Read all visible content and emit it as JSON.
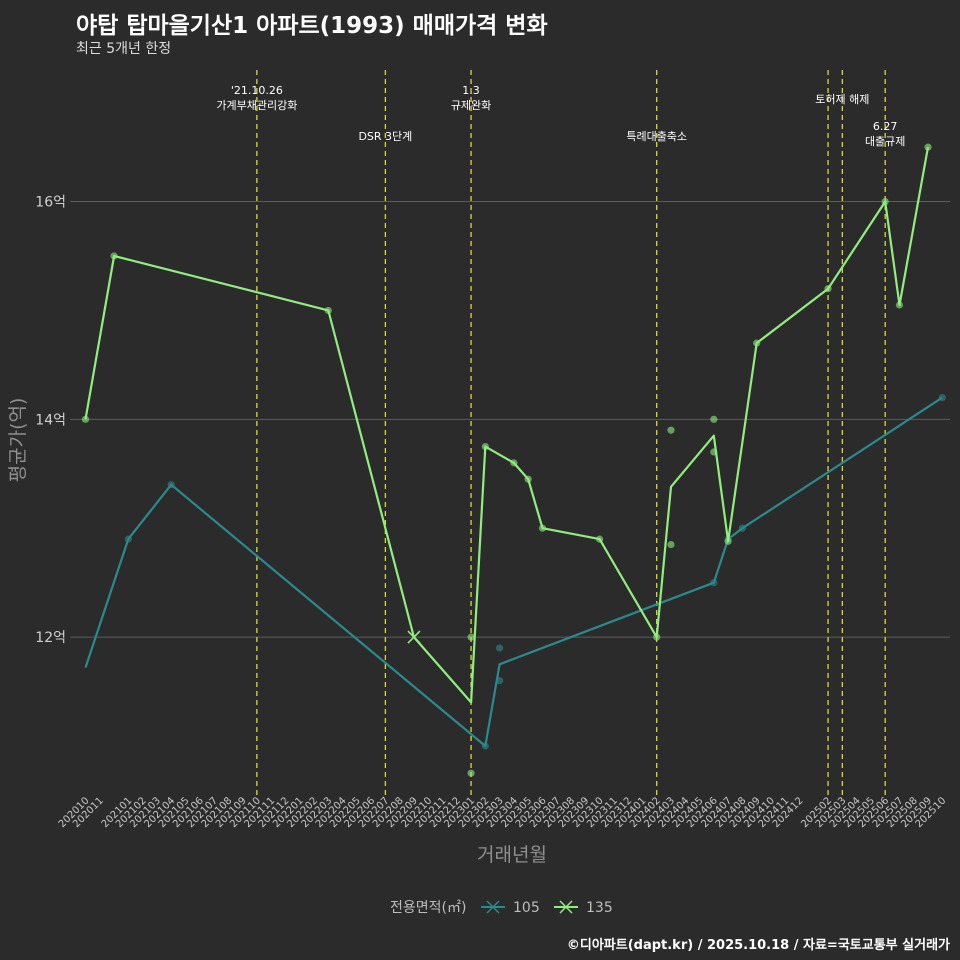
{
  "title": "야탑 탑마을기산1 아파트(1993) 매매가격 변화",
  "subtitle": "최근 5개년 한정",
  "caption": "©디아파트(dapt.kr) / 2025.10.18 / 자료=국토교통부 실거래가",
  "colors": {
    "background": "#2b2b2b",
    "grid": "#5c5c5c",
    "series_105": "#2a8a8c",
    "series_135": "#90ee7e",
    "event_line": "#d9d93a"
  },
  "chart_data": {
    "type": "line",
    "xlabel": "거래년월",
    "ylabel": "평균가(억)",
    "yunit": "억",
    "ylim": [
      10.55,
      17.3
    ],
    "yticks": [
      12,
      14,
      16
    ],
    "ytick_labels": [
      "12억",
      "14억",
      "16억"
    ],
    "x_months": [
      "202010",
      "202011",
      "202012",
      "202101",
      "202102",
      "202103",
      "202104",
      "202105",
      "202106",
      "202107",
      "202108",
      "202109",
      "202110",
      "202111",
      "202112",
      "202201",
      "202202",
      "202203",
      "202204",
      "202205",
      "202206",
      "202207",
      "202208",
      "202209",
      "202210",
      "202211",
      "202212",
      "202301",
      "202302",
      "202303",
      "202304",
      "202305",
      "202306",
      "202307",
      "202308",
      "202309",
      "202310",
      "202311",
      "202312",
      "202401",
      "202402",
      "202403",
      "202404",
      "202405",
      "202406",
      "202407",
      "202408",
      "202409",
      "202410",
      "202411",
      "202412",
      "202501",
      "202502",
      "202503",
      "202504",
      "202505",
      "202506",
      "202507",
      "202508",
      "202509",
      "202510"
    ],
    "x_tick_labels": [
      "202010",
      "202011",
      "202101",
      "202102",
      "202103",
      "202104",
      "202105",
      "202106",
      "202107",
      "202108",
      "202109",
      "202110",
      "202111",
      "202112",
      "202201",
      "202202",
      "202203",
      "202204",
      "202205",
      "202206",
      "202207",
      "202208",
      "202209",
      "202210",
      "202211",
      "202212",
      "202301",
      "202302",
      "202303",
      "202304",
      "202305",
      "202306",
      "202307",
      "202308",
      "202309",
      "202310",
      "202311",
      "202312",
      "202401",
      "202402",
      "202403",
      "202404",
      "202405",
      "202406",
      "202407",
      "202408",
      "202409",
      "202410",
      "202411",
      "202412",
      "202502",
      "202503",
      "202504",
      "202505",
      "202506",
      "202507",
      "202508",
      "202509",
      "202510"
    ],
    "series": [
      {
        "name": "105",
        "color": "#2a8a8c",
        "line": [
          [
            "202010",
            11.72
          ],
          [
            "202101",
            12.9
          ],
          [
            "202104",
            13.4
          ],
          [
            "202302",
            11.0
          ],
          [
            "202303",
            11.75
          ],
          [
            "202406",
            12.5
          ],
          [
            "202407",
            12.9
          ],
          [
            "202408",
            13.0
          ],
          [
            "202510",
            14.2
          ]
        ],
        "points": [
          [
            "202101",
            12.9
          ],
          [
            "202104",
            13.4
          ],
          [
            "202302",
            11.0
          ],
          [
            "202303",
            11.9
          ],
          [
            "202303",
            11.6
          ],
          [
            "202406",
            12.5
          ],
          [
            "202407",
            12.9
          ],
          [
            "202408",
            13.0
          ],
          [
            "202510",
            14.2
          ]
        ]
      },
      {
        "name": "135",
        "color": "#90ee7e",
        "line": [
          [
            "202010",
            14.0
          ],
          [
            "202012",
            15.5
          ],
          [
            "202203",
            15.0
          ],
          [
            "202209",
            12.0
          ],
          [
            "202301",
            11.4
          ],
          [
            "202302",
            13.75
          ],
          [
            "202304",
            13.6
          ],
          [
            "202305",
            13.45
          ],
          [
            "202306",
            13.0
          ],
          [
            "202310",
            12.9
          ],
          [
            "202402",
            12.0
          ],
          [
            "202403",
            13.38
          ],
          [
            "202406",
            13.85
          ],
          [
            "202407",
            12.88
          ],
          [
            "202409",
            14.7
          ],
          [
            "202502",
            15.2
          ],
          [
            "202506",
            16.0
          ],
          [
            "202507",
            15.05
          ],
          [
            "202509",
            16.5
          ]
        ],
        "points": [
          [
            "202010",
            14.0
          ],
          [
            "202012",
            15.5
          ],
          [
            "202203",
            15.0
          ],
          [
            "202301",
            12.0
          ],
          [
            "202301",
            10.75
          ],
          [
            "202302",
            13.75
          ],
          [
            "202304",
            13.6
          ],
          [
            "202305",
            13.45
          ],
          [
            "202306",
            13.0
          ],
          [
            "202310",
            12.9
          ],
          [
            "202402",
            12.0
          ],
          [
            "202403",
            13.9
          ],
          [
            "202403",
            12.85
          ],
          [
            "202406",
            14.0
          ],
          [
            "202406",
            13.7
          ],
          [
            "202407",
            12.88
          ],
          [
            "202409",
            14.7
          ],
          [
            "202502",
            15.2
          ],
          [
            "202506",
            16.0
          ],
          [
            "202507",
            15.05
          ],
          [
            "202509",
            16.5
          ]
        ],
        "markers_x": [
          [
            "202209",
            12.0
          ]
        ]
      }
    ],
    "events": [
      {
        "month": "202110",
        "lines": [
          "'21.10.26",
          "가계부채관리강화"
        ],
        "level": 1
      },
      {
        "month": "202207",
        "lines": [
          "DSR 3단계"
        ],
        "level": 3
      },
      {
        "month": "202301",
        "lines": [
          "1.3",
          "규제완화"
        ],
        "level": 1
      },
      {
        "month": "202402",
        "lines": [
          "특례대출축소"
        ],
        "level": 3
      },
      {
        "month": "202502",
        "lines": [],
        "level": 0
      },
      {
        "month": "202503",
        "lines": [
          "토허제 해제"
        ],
        "level": 2
      },
      {
        "month": "202506",
        "lines": [
          "6.27",
          "대출규제"
        ],
        "level": 4
      }
    ],
    "legend_title": "전용면적(㎡)",
    "legend": [
      "105",
      "135"
    ],
    "grid": true,
    "legend_position": "bottom"
  }
}
